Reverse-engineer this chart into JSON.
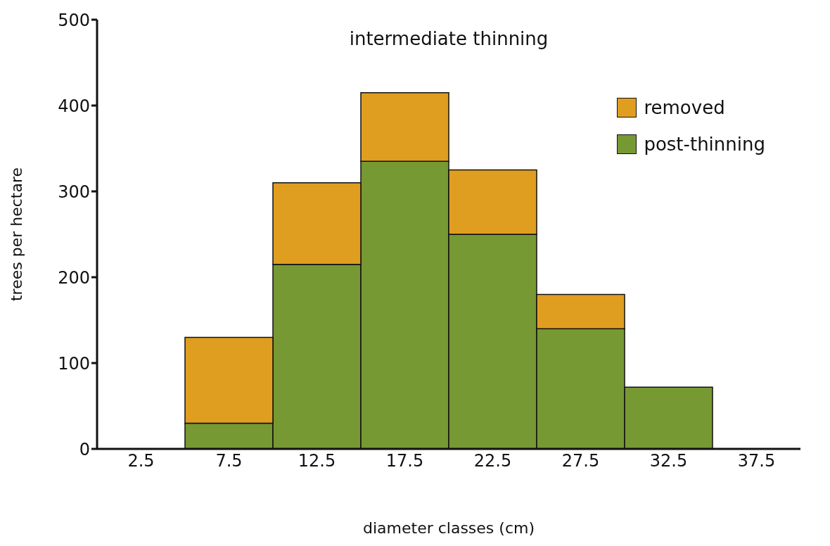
{
  "chart_data": {
    "type": "bar",
    "title": "intermediate thinning",
    "xlabel": "diameter classes (cm)",
    "ylabel": "trees per hectare",
    "categories": [
      "2.5",
      "7.5",
      "12.5",
      "17.5",
      "22.5",
      "27.5",
      "32.5",
      "37.5"
    ],
    "series": [
      {
        "name": "post-thinning",
        "color": "#779933",
        "values": [
          0,
          30,
          215,
          335,
          250,
          140,
          72,
          0
        ]
      },
      {
        "name": "removed",
        "color": "#e09e20",
        "values": [
          0,
          100,
          95,
          80,
          75,
          40,
          0,
          0
        ]
      }
    ],
    "stacked": true,
    "ylim": [
      0,
      500
    ],
    "yticks": [
      0,
      100,
      200,
      300,
      400,
      500
    ],
    "grid": false,
    "legend": "top right"
  }
}
